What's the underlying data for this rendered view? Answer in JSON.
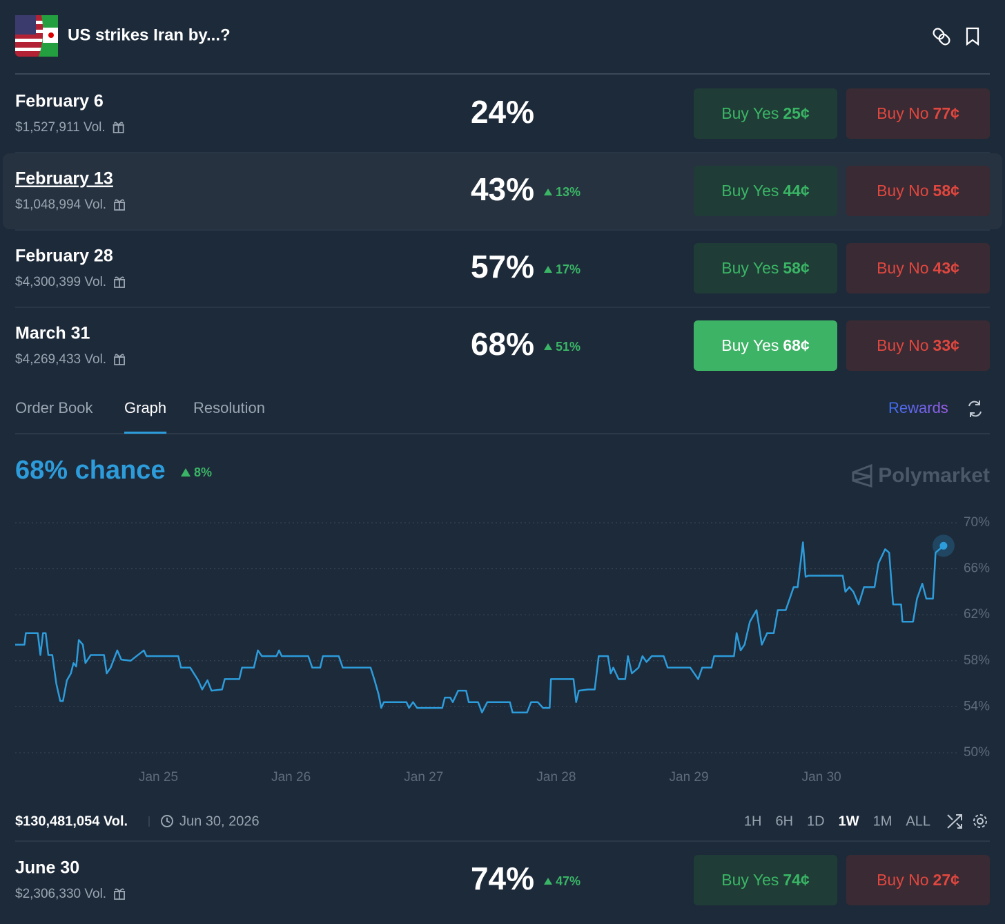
{
  "header": {
    "title": "US strikes Iran by...?"
  },
  "buttons": {
    "yes": "Buy Yes",
    "no": "Buy No"
  },
  "markets": [
    {
      "name": "February 6",
      "volume": "$1,527,911 Vol.",
      "chance": "24%",
      "change": null,
      "yes_price": "25¢",
      "no_price": "77¢"
    },
    {
      "name": "February 13",
      "volume": "$1,048,994 Vol.",
      "chance": "43%",
      "change": "13%",
      "yes_price": "44¢",
      "no_price": "58¢"
    },
    {
      "name": "February 28",
      "volume": "$4,300,399 Vol.",
      "chance": "57%",
      "change": "17%",
      "yes_price": "58¢",
      "no_price": "43¢"
    },
    {
      "name": "March 31",
      "volume": "$4,269,433 Vol.",
      "chance": "68%",
      "change": "51%",
      "yes_price": "68¢",
      "no_price": "33¢"
    },
    {
      "name": "June 30",
      "volume": "$2,306,330 Vol.",
      "chance": "74%",
      "change": "47%",
      "yes_price": "74¢",
      "no_price": "27¢"
    }
  ],
  "tabs": [
    "Order Book",
    "Graph",
    "Resolution"
  ],
  "rewards": "Rewards",
  "watermark": "Polymarket",
  "chart_data": {
    "type": "line",
    "title": "68% chance",
    "change": "8%",
    "color": "#2d9cdb",
    "x": [
      23.92,
      23.99,
      24.0,
      24.09,
      24.11,
      24.13,
      24.15,
      24.17,
      24.2,
      24.23,
      24.26,
      24.28,
      24.31,
      24.34,
      24.36,
      24.38,
      24.4,
      24.43,
      24.45,
      24.49,
      24.59,
      24.61,
      24.64,
      24.69,
      24.72,
      24.79,
      24.89,
      24.91,
      25.15,
      25.17,
      25.24,
      25.3,
      25.33,
      25.37,
      25.4,
      25.48,
      25.5,
      25.61,
      25.63,
      25.72,
      25.75,
      25.78,
      25.89,
      25.91,
      25.93,
      26.13,
      26.16,
      26.22,
      26.24,
      26.36,
      26.39,
      26.6,
      26.63,
      26.66,
      26.68,
      26.7,
      26.87,
      26.89,
      26.92,
      26.95,
      27.14,
      27.16,
      27.2,
      27.22,
      27.26,
      27.32,
      27.34,
      27.41,
      27.44,
      27.48,
      27.65,
      27.67,
      27.78,
      27.81,
      27.86,
      27.9,
      27.95,
      27.96,
      28.13,
      28.15,
      28.17,
      28.24,
      28.29,
      28.32,
      28.39,
      28.41,
      28.43,
      28.47,
      28.52,
      28.54,
      28.57,
      28.62,
      28.65,
      28.68,
      28.72,
      28.81,
      28.84,
      29.01,
      29.07,
      29.1,
      29.17,
      29.19,
      29.34,
      29.36,
      29.39,
      29.42,
      29.46,
      29.51,
      29.55,
      29.59,
      29.64,
      29.67,
      29.73,
      29.76,
      29.79,
      29.82,
      29.86,
      29.88,
      29.9,
      30.16,
      30.18,
      30.21,
      30.24,
      30.28,
      30.32,
      30.4,
      30.43,
      30.48,
      30.51,
      30.54,
      30.6,
      30.61,
      30.69,
      30.72,
      30.76,
      30.79,
      30.84,
      30.86,
      30.92
    ],
    "values": [
      59.4,
      59.4,
      60.4,
      60.4,
      58.5,
      60.4,
      60.4,
      58.5,
      58.5,
      56.0,
      54.5,
      54.5,
      56.3,
      56.9,
      57.8,
      57.5,
      59.8,
      59.4,
      57.8,
      58.5,
      58.5,
      56.9,
      57.4,
      58.9,
      58.1,
      58.0,
      58.9,
      58.4,
      58.4,
      57.4,
      57.4,
      56.3,
      55.5,
      56.3,
      55.4,
      55.5,
      56.4,
      56.4,
      57.4,
      57.4,
      58.9,
      58.4,
      58.4,
      58.9,
      58.4,
      58.4,
      57.4,
      57.4,
      58.4,
      58.4,
      57.4,
      57.4,
      56.3,
      55.1,
      53.9,
      54.4,
      54.4,
      53.9,
      54.4,
      53.9,
      53.9,
      54.8,
      54.8,
      54.4,
      55.4,
      55.4,
      54.4,
      54.4,
      53.5,
      54.4,
      54.4,
      53.5,
      53.5,
      54.4,
      54.4,
      53.9,
      53.9,
      56.4,
      56.4,
      54.4,
      55.4,
      55.5,
      55.5,
      58.4,
      58.4,
      56.9,
      57.4,
      56.4,
      56.4,
      58.4,
      56.9,
      57.4,
      58.4,
      57.9,
      58.4,
      58.4,
      57.4,
      57.4,
      56.4,
      57.4,
      57.4,
      58.4,
      58.4,
      60.4,
      58.9,
      59.4,
      61.4,
      62.4,
      59.4,
      60.4,
      60.4,
      62.4,
      62.4,
      63.4,
      64.4,
      64.4,
      68.3,
      65.3,
      65.4,
      65.4,
      64.0,
      64.4,
      64.0,
      62.9,
      64.4,
      64.4,
      66.5,
      67.7,
      67.4,
      62.9,
      62.9,
      61.4,
      61.4,
      63.4,
      64.7,
      63.4,
      63.4,
      67.4,
      68
    ],
    "xlim": [
      23.92,
      31.04
    ],
    "xticks": [
      {
        "value": 25,
        "label": "Jan 25"
      },
      {
        "value": 26,
        "label": "Jan 26"
      },
      {
        "value": 27,
        "label": "Jan 27"
      },
      {
        "value": 28,
        "label": "Jan 28"
      },
      {
        "value": 29,
        "label": "Jan 29"
      },
      {
        "value": 30,
        "label": "Jan 30"
      }
    ],
    "ylim": [
      50,
      70
    ],
    "yticks": [
      {
        "value": 50,
        "label": "50%"
      },
      {
        "value": 54,
        "label": "54%"
      },
      {
        "value": 58,
        "label": "58%"
      },
      {
        "value": 62,
        "label": "62%"
      },
      {
        "value": 66,
        "label": "66%"
      },
      {
        "value": 70,
        "label": "70%"
      }
    ],
    "grid": true
  },
  "footer": {
    "volume": "$130,481,054 Vol.",
    "end_date": "Jun 30, 2026",
    "ranges": [
      "1H",
      "6H",
      "1D",
      "1W",
      "1M",
      "ALL"
    ]
  }
}
